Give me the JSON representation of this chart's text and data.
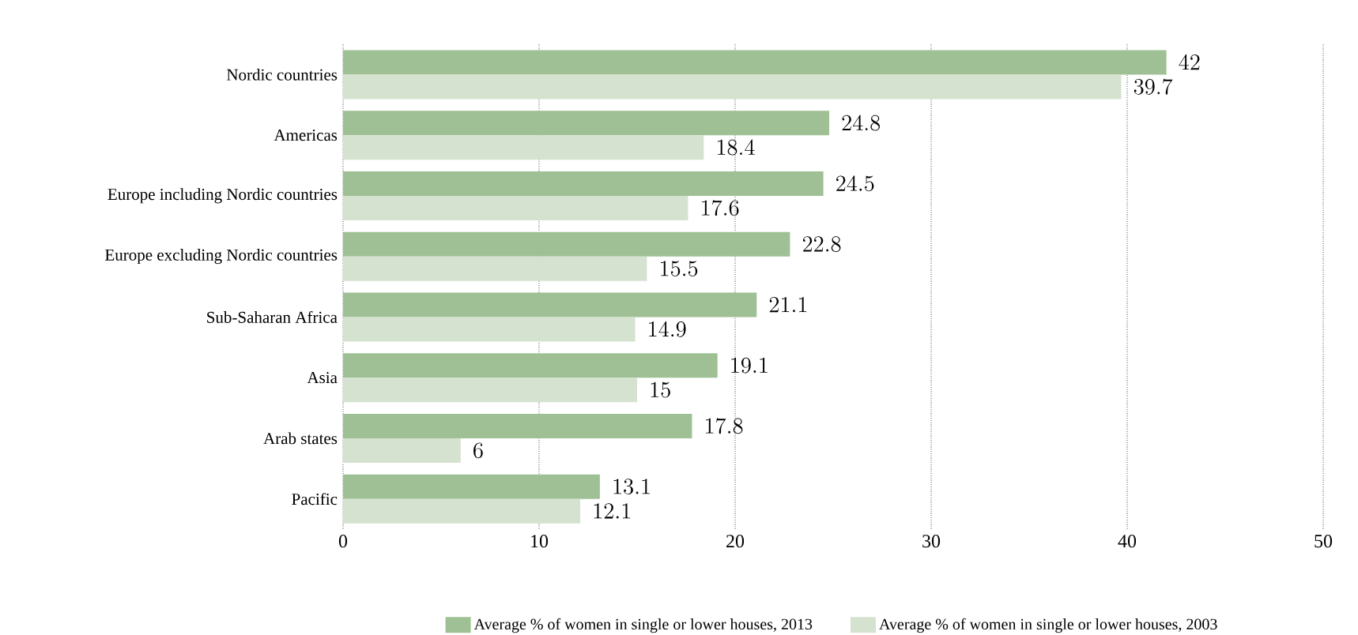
{
  "chart_data": {
    "type": "bar",
    "orientation": "horizontal",
    "categories": [
      "Nordic countries",
      "Americas",
      "Europe including Nordic countries",
      "Europe excluding Nordic countries",
      "Sub-Saharan Africa",
      "Asia",
      "Arab states",
      "Pacific"
    ],
    "series": [
      {
        "name": "Average % of women in single or lower houses, 2013",
        "color": "#9ec094",
        "values": [
          42,
          24.8,
          24.5,
          22.8,
          21.1,
          19.1,
          17.8,
          13.1
        ]
      },
      {
        "name": "Average % of women in single or lower houses, 2003",
        "color": "#d6e2d0",
        "values": [
          39.7,
          18.4,
          17.6,
          15.5,
          14.9,
          15,
          6,
          12.1
        ]
      }
    ],
    "xlim": [
      0,
      50
    ],
    "xticks": [
      0,
      10,
      20,
      30,
      40,
      50
    ],
    "grid": "x",
    "data_labels": true,
    "legend": "bottom"
  }
}
